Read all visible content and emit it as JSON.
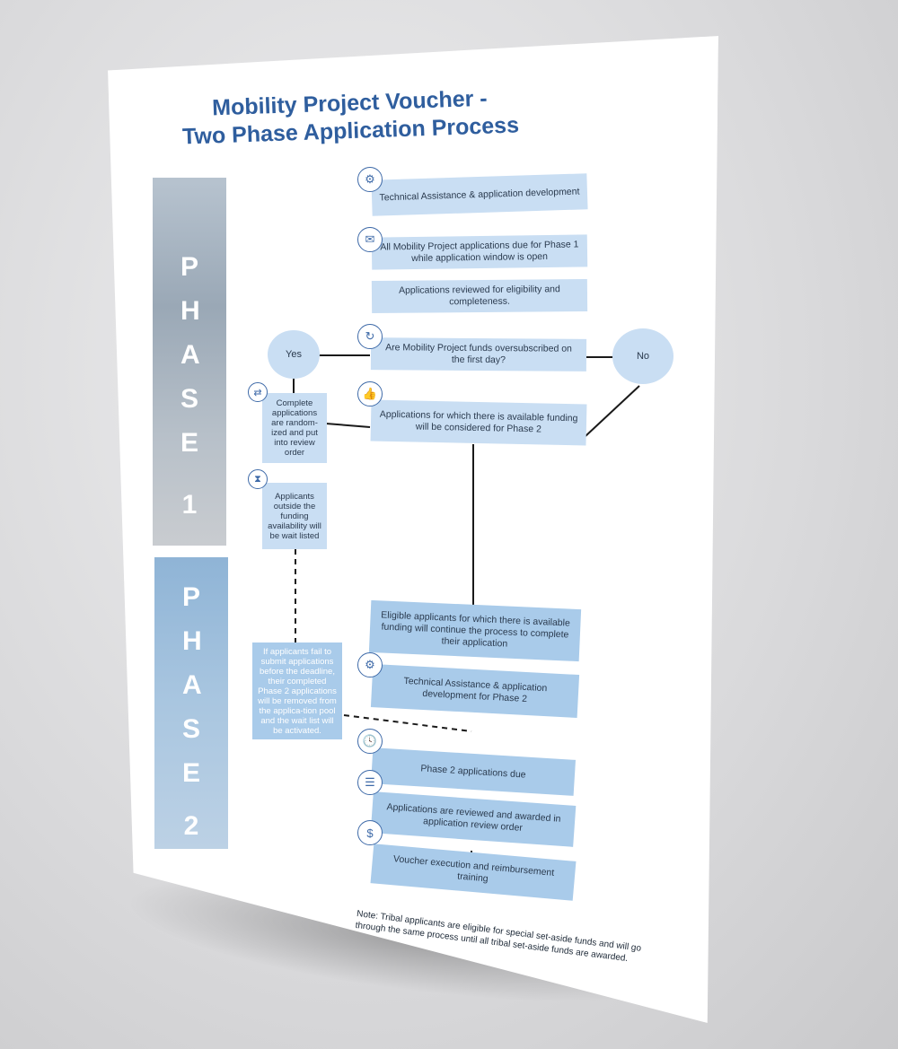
{
  "title": {
    "line1": "Mobility Project Voucher -",
    "line2": "Two Phase Application Process"
  },
  "phases": [
    {
      "word": "PHASE",
      "number": "1"
    },
    {
      "word": "PHASE",
      "number": "2"
    }
  ],
  "steps": {
    "technical_assistance": "Technical Assistance & application development",
    "applications_due_phase1": "All Mobility Project applications due for Phase 1 while application window is open",
    "reviewed_eligibility": "Applications reviewed for eligibility and completeness.",
    "oversubscribed_question": "Are Mobility Project funds oversubscribed on the first day?",
    "yes": "Yes",
    "no": "No",
    "available_funding_phase2": "Applications for which there is available funding will be considered for Phase 2",
    "randomized": "Complete applications are random-ized and put into review order",
    "wait_listed": "Applicants outside the funding availability will be wait listed",
    "eligible_continue": "Eligible applicants for which there is available funding will continue the process to complete their application",
    "technical_assistance_phase2": "Technical Assistance & application development for Phase 2",
    "fail_to_submit": "If applicants fail to submit applications before the deadline, their completed Phase 2 applications will be removed from the applica-tion pool and the wait list will be activated.",
    "phase2_due": "Phase 2 applications due",
    "reviewed_awarded": "Applications are reviewed and awarded in application review order",
    "voucher_execution": "Voucher execution and reimbursement training"
  },
  "icons": {
    "technical_assistance": "hand-gear-icon",
    "applications_due": "envelope-icon",
    "oversubscribed": "coin-arrow-icon",
    "available_funding": "thumbs-up-icon",
    "randomized": "shuffle-icon",
    "wait_listed": "hourglass-icon",
    "technical_assistance_phase2": "hand-gear-icon",
    "phase2_due": "clock-icon",
    "reviewed_awarded": "checklist-icon",
    "voucher_execution": "dollar-icon"
  },
  "note": "Note: Tribal applicants are eligible for special set-aside funds and will go through the same process until all tribal set-aside funds are awarded.",
  "colors": {
    "title": "#2f5e9e",
    "box_light": "#c9def3",
    "box_dark": "#a9cbea",
    "icon_stroke": "#3e6aa8"
  }
}
